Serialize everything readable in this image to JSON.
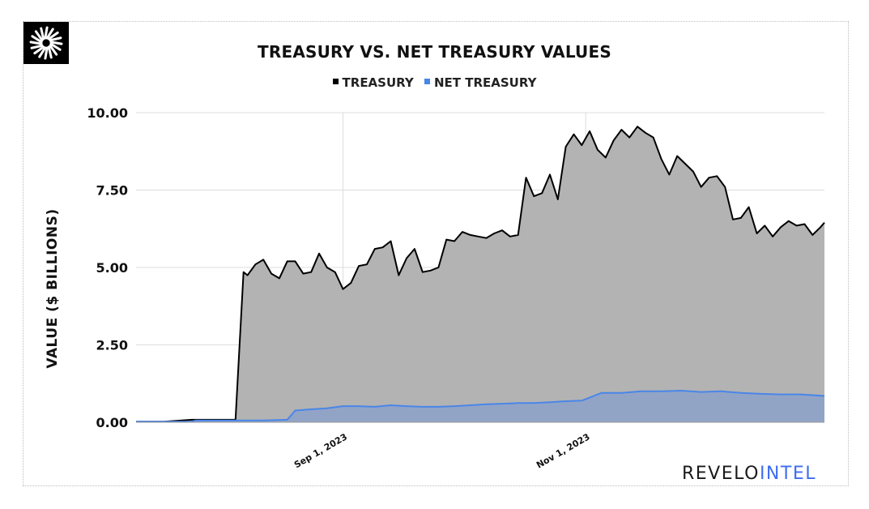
{
  "colors": {
    "treasury_line": "#000000",
    "treasury_fill": "#b3b3b3",
    "net_line": "#4a86e8",
    "net_fill": "#92a4c6",
    "grid": "#dddddd",
    "brand_dark": "#1a1a1a",
    "brand_accent": "#3e6ef0"
  },
  "logo": {
    "icon": "starburst-logo-icon"
  },
  "brand": {
    "part1": "REVELO",
    "part2": "INTEL"
  },
  "chart_data": {
    "type": "area",
    "title": "TREASURY VS. NET TREASURY VALUES",
    "xlabel": "",
    "ylabel": "VALUE ($ BILLIONS)",
    "ylim": [
      0,
      10
    ],
    "yticks": [
      "0.00",
      "2.50",
      "5.00",
      "7.50",
      "10.00"
    ],
    "xticks": [
      "Sep 1, 2023",
      "Nov 1, 2023"
    ],
    "x_range": [
      "2023-07-11",
      "2023-12-31"
    ],
    "legend_position": "top-center",
    "grid": true,
    "series": [
      {
        "name": "TREASURY",
        "dates": [
          "2023-07-11",
          "2023-07-18",
          "2023-07-25",
          "2023-07-26",
          "2023-08-05",
          "2023-08-07",
          "2023-08-08",
          "2023-08-10",
          "2023-08-12",
          "2023-08-14",
          "2023-08-16",
          "2023-08-18",
          "2023-08-20",
          "2023-08-22",
          "2023-08-24",
          "2023-08-26",
          "2023-08-28",
          "2023-08-30",
          "2023-09-01",
          "2023-09-03",
          "2023-09-05",
          "2023-09-07",
          "2023-09-09",
          "2023-09-11",
          "2023-09-13",
          "2023-09-15",
          "2023-09-17",
          "2023-09-19",
          "2023-09-21",
          "2023-09-23",
          "2023-09-25",
          "2023-09-27",
          "2023-09-29",
          "2023-10-01",
          "2023-10-03",
          "2023-10-05",
          "2023-10-07",
          "2023-10-09",
          "2023-10-11",
          "2023-10-13",
          "2023-10-15",
          "2023-10-17",
          "2023-10-19",
          "2023-10-21",
          "2023-10-23",
          "2023-10-25",
          "2023-10-27",
          "2023-10-29",
          "2023-10-31",
          "2023-11-02",
          "2023-11-04",
          "2023-11-06",
          "2023-11-08",
          "2023-11-10",
          "2023-11-12",
          "2023-11-14",
          "2023-11-16",
          "2023-11-18",
          "2023-11-20",
          "2023-11-22",
          "2023-11-24",
          "2023-11-26",
          "2023-11-28",
          "2023-11-30",
          "2023-12-02",
          "2023-12-04",
          "2023-12-06",
          "2023-12-08",
          "2023-12-10",
          "2023-12-12",
          "2023-12-14",
          "2023-12-16",
          "2023-12-18",
          "2023-12-20",
          "2023-12-22",
          "2023-12-24",
          "2023-12-26",
          "2023-12-28",
          "2023-12-30",
          "2023-12-31"
        ],
        "values": [
          0.02,
          0.02,
          0.08,
          0.08,
          0.08,
          4.85,
          4.75,
          5.1,
          5.25,
          4.8,
          4.65,
          5.2,
          5.2,
          4.8,
          4.85,
          5.45,
          5.0,
          4.85,
          4.3,
          4.5,
          5.05,
          5.1,
          5.6,
          5.65,
          5.85,
          4.75,
          5.3,
          5.6,
          4.85,
          4.9,
          5.0,
          5.9,
          5.85,
          6.15,
          6.05,
          6.0,
          5.95,
          6.1,
          6.2,
          6.0,
          6.05,
          7.9,
          7.3,
          7.4,
          8.0,
          7.2,
          8.9,
          9.3,
          8.95,
          9.4,
          8.8,
          8.55,
          9.1,
          9.45,
          9.2,
          9.55,
          9.35,
          9.2,
          8.5,
          8.0,
          8.6,
          8.35,
          8.1,
          7.6,
          7.9,
          7.95,
          7.6,
          6.55,
          6.6,
          6.95,
          6.1,
          6.35,
          6.0,
          6.3,
          6.5,
          6.35,
          6.4,
          6.05,
          6.3,
          6.45
        ]
      },
      {
        "name": "NET TREASURY",
        "dates": [
          "2023-07-11",
          "2023-07-25",
          "2023-07-26",
          "2023-08-05",
          "2023-08-12",
          "2023-08-18",
          "2023-08-20",
          "2023-08-24",
          "2023-08-28",
          "2023-09-01",
          "2023-09-05",
          "2023-09-09",
          "2023-09-13",
          "2023-09-17",
          "2023-09-21",
          "2023-09-25",
          "2023-09-29",
          "2023-10-03",
          "2023-10-07",
          "2023-10-11",
          "2023-10-15",
          "2023-10-19",
          "2023-10-23",
          "2023-10-27",
          "2023-10-31",
          "2023-11-01",
          "2023-11-05",
          "2023-11-10",
          "2023-11-15",
          "2023-11-20",
          "2023-11-25",
          "2023-11-30",
          "2023-12-05",
          "2023-12-10",
          "2023-12-15",
          "2023-12-20",
          "2023-12-25",
          "2023-12-31"
        ],
        "values": [
          0.02,
          0.02,
          0.06,
          0.06,
          0.06,
          0.08,
          0.38,
          0.42,
          0.45,
          0.52,
          0.52,
          0.5,
          0.55,
          0.52,
          0.5,
          0.5,
          0.52,
          0.55,
          0.58,
          0.6,
          0.62,
          0.62,
          0.65,
          0.68,
          0.7,
          0.75,
          0.95,
          0.95,
          1.0,
          1.0,
          1.02,
          0.98,
          1.0,
          0.95,
          0.92,
          0.9,
          0.9,
          0.85
        ]
      }
    ]
  }
}
